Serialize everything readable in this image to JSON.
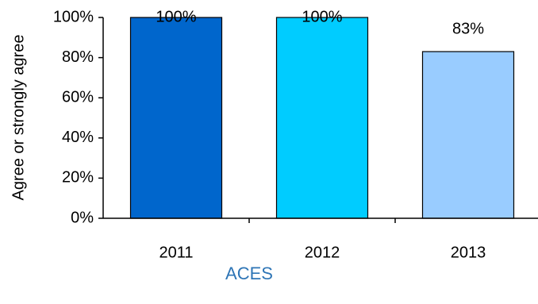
{
  "chart_data": {
    "type": "bar",
    "categories": [
      "2011",
      "2012",
      "2013"
    ],
    "values": [
      100,
      100,
      83
    ],
    "value_labels": [
      "100%",
      "100%",
      "83%"
    ],
    "colors": [
      "#0066cc",
      "#00ccff",
      "#99ccff"
    ],
    "y_label": "Agree or strongly agree",
    "x_label": "ACES",
    "ylim": [
      0,
      100
    ],
    "yticks": [
      {
        "value": 0,
        "label": "0%"
      },
      {
        "value": 20,
        "label": "20%"
      },
      {
        "value": 40,
        "label": "40%"
      },
      {
        "value": 60,
        "label": "60%"
      },
      {
        "value": 80,
        "label": "80%"
      },
      {
        "value": 100,
        "label": "100%"
      }
    ],
    "grid": false
  }
}
